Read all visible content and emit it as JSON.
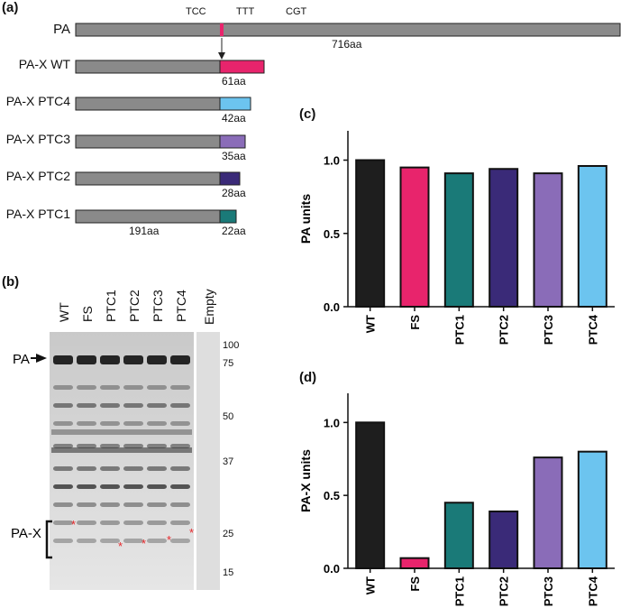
{
  "panel_a": {
    "label": "(a)",
    "codons": [
      "TCC",
      "TTT",
      "CGT"
    ],
    "pa_label": "PA",
    "pa_length": "716aa",
    "constructs": [
      {
        "name": "PA-X WT",
        "tail": "61aa",
        "color": "#e8246c",
        "tail_aa": 61
      },
      {
        "name": "PA-X PTC4",
        "tail": "42aa",
        "color": "#6cc4ef",
        "tail_aa": 42
      },
      {
        "name": "PA-X PTC3",
        "tail": "35aa",
        "color": "#8a6cb8",
        "tail_aa": 35
      },
      {
        "name": "PA-X PTC2",
        "tail": "28aa",
        "color": "#3a2a78",
        "tail_aa": 28
      },
      {
        "name": "PA-X PTC1",
        "tail": "22aa",
        "color": "#1a7a78",
        "tail_aa": 22
      }
    ],
    "n_terminal": "191aa"
  },
  "panel_b": {
    "label": "(b)",
    "lanes": [
      "WT",
      "FS",
      "PTC1",
      "PTC2",
      "PTC3",
      "PTC4"
    ],
    "empty_lane": "Empty",
    "markers": [
      "100",
      "75",
      "50",
      "37",
      "25",
      "15"
    ],
    "pa_label": "PA",
    "pax_label": "PA-X"
  },
  "colors": {
    "WT": "#1e1e1e",
    "FS": "#e8246c",
    "PTC1": "#1a7a78",
    "PTC2": "#3a2a78",
    "PTC3": "#8a6cb8",
    "PTC4": "#6cc4ef"
  },
  "chart_data": [
    {
      "panel": "(c)",
      "type": "bar",
      "categories": [
        "WT",
        "FS",
        "PTC1",
        "PTC2",
        "PTC3",
        "PTC4"
      ],
      "values": [
        1.0,
        0.95,
        0.91,
        0.94,
        0.91,
        0.96
      ],
      "ylabel": "PA units",
      "ylim": [
        0,
        1.2
      ],
      "yticks": [
        "0.0",
        "0.5",
        "1.0"
      ]
    },
    {
      "panel": "(d)",
      "type": "bar",
      "categories": [
        "WT",
        "FS",
        "PTC1",
        "PTC2",
        "PTC3",
        "PTC4"
      ],
      "values": [
        1.0,
        0.07,
        0.45,
        0.39,
        0.76,
        0.8
      ],
      "ylabel": "PA-X units",
      "ylim": [
        0,
        1.2
      ],
      "yticks": [
        "0.0",
        "0.5",
        "1.0"
      ]
    }
  ]
}
